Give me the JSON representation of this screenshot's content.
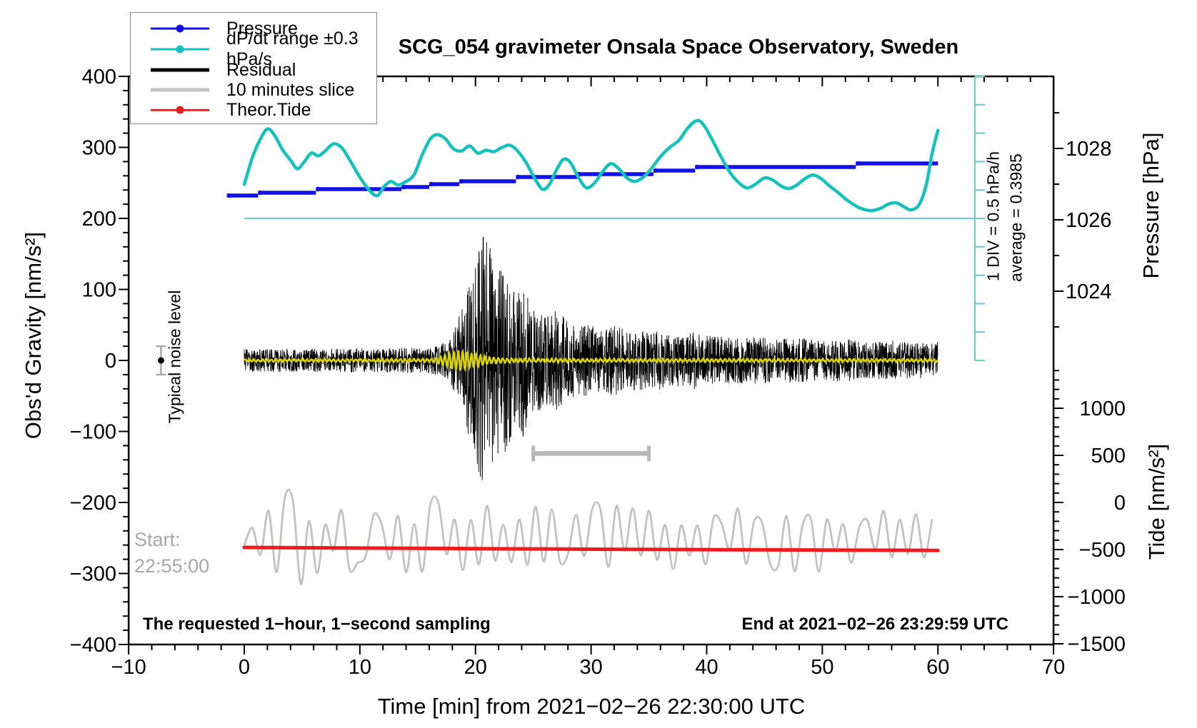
{
  "title": "SCG_054 gravimeter Onsala Space Observatory, Sweden",
  "colors": {
    "pressure_blue": "#1212e8",
    "dpdt_cyan": "#15c1bc",
    "dpdt_light_cyan": "#6fccc8",
    "residual_black": "#000000",
    "slice_gray": "#c2c2c2",
    "bar_gray": "#b8b8b8",
    "tide_red": "#ee1c1c",
    "overlay_yellow": "#d9d400",
    "muted_text_gray": "#a8a8a8",
    "frame_black": "#000000"
  },
  "legend": {
    "items": [
      {
        "label": "Pressure",
        "color": "#1212e8",
        "thick": 3,
        "dot": true
      },
      {
        "label": "dP/dt range ±0.3 hPa/s",
        "color": "#15c1bc",
        "thick": 3,
        "dot": true
      },
      {
        "label": "Residual",
        "color": "#000000",
        "thick": 5,
        "dot": false
      },
      {
        "label": "10 minutes slice",
        "color": "#c2c2c2",
        "thick": 5,
        "dot": false
      },
      {
        "label": "Theor.Tide",
        "color": "#ee1c1c",
        "thick": 2.5,
        "dot": true
      }
    ]
  },
  "annotations": {
    "noise_label": "Typical noise level",
    "start_line1": "Start:",
    "start_line2": "22:55:00",
    "sampling": "The requested 1−hour, 1−second sampling",
    "end": "End at 2021−02−26 23:29:59 UTC",
    "div_label": "1 DIV = 0.5 hPa/h",
    "average_label": "average = 0.3985"
  },
  "axes": {
    "x": {
      "label": "Time [min] from 2021−02−26 22:30:00 UTC",
      "min": -10,
      "max": 70,
      "minor_step": 2,
      "major_values": [
        -10,
        0,
        10,
        20,
        30,
        40,
        50,
        60,
        70
      ],
      "major_labels": [
        "−10",
        "0",
        "10",
        "20",
        "30",
        "40",
        "50",
        "60",
        "70"
      ]
    },
    "gravity": {
      "label": "Obs'd Gravity [nm/s²]",
      "min": -400,
      "max": 400,
      "minor_step": 20,
      "major_values": [
        400,
        300,
        200,
        100,
        0,
        -100,
        -200,
        -300,
        -400
      ],
      "major_labels": [
        "400",
        "300",
        "200",
        "100",
        "0",
        "−100",
        "−200",
        "−300",
        "−400"
      ]
    },
    "pressure": {
      "label": "Pressure [hPa]",
      "tick_values": [
        1029,
        1028,
        1027,
        1026,
        1025,
        1024,
        1023
      ],
      "major_values": [
        1028,
        1026,
        1024
      ],
      "major_labels": [
        "1028",
        "1026",
        "1024"
      ]
    },
    "tide": {
      "label": "Tide [nm/s²]",
      "minor_step": 100,
      "minor_min": -1500,
      "minor_max": 1400,
      "major_values": [
        1000,
        500,
        0,
        -500,
        -1000,
        -1500
      ],
      "major_labels": [
        "1000",
        "500",
        "0",
        "−500",
        "−1000",
        "−1500"
      ]
    }
  },
  "chart_data": {
    "type": "line",
    "title": "SCG_054 gravimeter Onsala Space Observatory, Sweden",
    "xlabel": "Time [min] from 2021−02−26 22:30:00 UTC",
    "xlim": [
      -10,
      70
    ],
    "gravity_ylim": [
      -400,
      400
    ],
    "grid": false,
    "legend_position": "top-left",
    "series": {
      "pressure_steps_hPa": [
        [
          -1.5,
          1.2,
          1026.68
        ],
        [
          1.2,
          6.2,
          1026.76
        ],
        [
          6.2,
          13.6,
          1026.86
        ],
        [
          13.6,
          16.0,
          1026.92
        ],
        [
          16.0,
          18.6,
          1027.0
        ],
        [
          18.6,
          23.5,
          1027.08
        ],
        [
          23.5,
          28.8,
          1027.2
        ],
        [
          28.8,
          35.4,
          1027.28
        ],
        [
          35.4,
          39.0,
          1027.38
        ],
        [
          39.0,
          52.9,
          1027.48
        ],
        [
          52.9,
          60.0,
          1027.58
        ]
      ],
      "dpdt_curve_gravity_units": [
        [
          0,
          248
        ],
        [
          0.8,
          290
        ],
        [
          1.6,
          318
        ],
        [
          2.1,
          326
        ],
        [
          2.7,
          315
        ],
        [
          3.3,
          297
        ],
        [
          4,
          282
        ],
        [
          4.6,
          270
        ],
        [
          5.2,
          280
        ],
        [
          5.8,
          292
        ],
        [
          6.4,
          288
        ],
        [
          7,
          295
        ],
        [
          7.7,
          305
        ],
        [
          8.4,
          300
        ],
        [
          9.1,
          283
        ],
        [
          10,
          258
        ],
        [
          10.8,
          240
        ],
        [
          11.5,
          232
        ],
        [
          12.1,
          245
        ],
        [
          12.7,
          252
        ],
        [
          13.3,
          247
        ],
        [
          14,
          252
        ],
        [
          14.7,
          262
        ],
        [
          15.4,
          290
        ],
        [
          16.1,
          312
        ],
        [
          16.7,
          318
        ],
        [
          17.4,
          312
        ],
        [
          18.1,
          298
        ],
        [
          18.8,
          295
        ],
        [
          19.5,
          302
        ],
        [
          20.2,
          292
        ],
        [
          20.9,
          296
        ],
        [
          21.6,
          294
        ],
        [
          22.3,
          300
        ],
        [
          23,
          303
        ],
        [
          23.7,
          294
        ],
        [
          24.4,
          278
        ],
        [
          25.1,
          257
        ],
        [
          25.8,
          241
        ],
        [
          26.4,
          248
        ],
        [
          27,
          268
        ],
        [
          27.6,
          283
        ],
        [
          28.2,
          279
        ],
        [
          28.9,
          258
        ],
        [
          29.6,
          243
        ],
        [
          30.3,
          250
        ],
        [
          31,
          266
        ],
        [
          31.7,
          277
        ],
        [
          32.4,
          270
        ],
        [
          33.1,
          257
        ],
        [
          33.8,
          252
        ],
        [
          34.5,
          258
        ],
        [
          35.2,
          270
        ],
        [
          36,
          287
        ],
        [
          36.8,
          300
        ],
        [
          37.6,
          310
        ],
        [
          38.4,
          328
        ],
        [
          39.2,
          338
        ],
        [
          39.8,
          330
        ],
        [
          40.5,
          310
        ],
        [
          41.2,
          288
        ],
        [
          42,
          265
        ],
        [
          42.8,
          250
        ],
        [
          43.5,
          243
        ],
        [
          44.2,
          248
        ],
        [
          45,
          257
        ],
        [
          45.7,
          254
        ],
        [
          46.4,
          246
        ],
        [
          47.1,
          242
        ],
        [
          47.8,
          247
        ],
        [
          48.5,
          256
        ],
        [
          49.2,
          261
        ],
        [
          49.9,
          256
        ],
        [
          50.6,
          246
        ],
        [
          51.4,
          236
        ],
        [
          52.2,
          225
        ],
        [
          53.2,
          215
        ],
        [
          54.2,
          211
        ],
        [
          55,
          214
        ],
        [
          55.7,
          220
        ],
        [
          56.4,
          222
        ],
        [
          57.1,
          216
        ],
        [
          57.7,
          212
        ],
        [
          58.4,
          220
        ],
        [
          59,
          248
        ],
        [
          59.5,
          292
        ],
        [
          60,
          324
        ]
      ],
      "dpdt_reference": {
        "gravity_level": 200,
        "t_start": 0,
        "t_end": 63.2,
        "scalebar_t": 63.2,
        "scalebar_gravity_range": [
          0,
          400
        ],
        "divisions": 10,
        "div_equals": "0.5 hPa/h",
        "average_hPa_per_h": 0.3985
      },
      "residual": {
        "t_range": [
          0,
          60
        ],
        "amplitude_envelope_nm_s2": [
          [
            0,
            16
          ],
          [
            5,
            16
          ],
          [
            10,
            17
          ],
          [
            16,
            18
          ],
          [
            17,
            22
          ],
          [
            17.8,
            35
          ],
          [
            18.5,
            60
          ],
          [
            19.2,
            95
          ],
          [
            19.8,
            130
          ],
          [
            20.3,
            165
          ],
          [
            20.8,
            182
          ],
          [
            21.3,
            160
          ],
          [
            21.8,
            130
          ],
          [
            22.3,
            148
          ],
          [
            22.8,
            120
          ],
          [
            23.5,
            95
          ],
          [
            24.2,
            110
          ],
          [
            25,
            80
          ],
          [
            26,
            65
          ],
          [
            27,
            72
          ],
          [
            28,
            55
          ],
          [
            29,
            48
          ],
          [
            30,
            55
          ],
          [
            31,
            45
          ],
          [
            32,
            50
          ],
          [
            33,
            42
          ],
          [
            34,
            45
          ],
          [
            35,
            38
          ],
          [
            36,
            42
          ],
          [
            37,
            35
          ],
          [
            38,
            38
          ],
          [
            39,
            42
          ],
          [
            40,
            36
          ],
          [
            42,
            32
          ],
          [
            44,
            34
          ],
          [
            46,
            30
          ],
          [
            48,
            32
          ],
          [
            50,
            28
          ],
          [
            52,
            30
          ],
          [
            54,
            26
          ],
          [
            56,
            28
          ],
          [
            58,
            25
          ],
          [
            60,
            26
          ]
        ]
      },
      "tremor_overlay_yellow": {
        "t_range": [
          0,
          60
        ],
        "cycles_per_min": 2.6,
        "amplitude_envelope_nm_s2": [
          [
            0,
            1.5
          ],
          [
            15,
            1.8
          ],
          [
            16.5,
            3
          ],
          [
            17.2,
            7
          ],
          [
            17.8,
            11
          ],
          [
            18.4,
            14
          ],
          [
            19,
            13
          ],
          [
            19.6,
            10
          ],
          [
            20.2,
            8
          ],
          [
            20.8,
            6
          ],
          [
            21.5,
            4
          ],
          [
            22.5,
            3
          ],
          [
            24,
            2.5
          ],
          [
            30,
            2
          ],
          [
            60,
            1.8
          ]
        ]
      },
      "slice_trace_gray": {
        "t_range": [
          0,
          60
        ],
        "center_gravity": -250,
        "control_spacing_min": 0.7,
        "amplitude_envelope": [
          [
            0,
            33
          ],
          [
            2,
            45
          ],
          [
            3,
            60
          ],
          [
            4.5,
            69
          ],
          [
            6,
            66
          ],
          [
            7,
            48
          ],
          [
            8,
            57
          ],
          [
            10,
            51
          ],
          [
            12,
            54
          ],
          [
            15,
            48
          ],
          [
            20,
            51
          ],
          [
            25,
            45
          ],
          [
            30,
            51
          ],
          [
            35,
            48
          ],
          [
            40,
            48
          ],
          [
            45,
            51
          ],
          [
            50,
            48
          ],
          [
            55,
            51
          ],
          [
            60,
            48
          ]
        ]
      },
      "theor_tide_nm_s2": [
        [
          0,
          -477
        ],
        [
          10,
          -484
        ],
        [
          20,
          -490
        ],
        [
          30,
          -496
        ],
        [
          40,
          -501
        ],
        [
          50,
          -505
        ],
        [
          60,
          -509
        ]
      ],
      "ten_minute_bar": {
        "t_start": 25,
        "t_end": 35,
        "gravity": -131
      },
      "noise_marker": {
        "t": -7.2,
        "gravity": 0,
        "error": 20
      }
    }
  }
}
